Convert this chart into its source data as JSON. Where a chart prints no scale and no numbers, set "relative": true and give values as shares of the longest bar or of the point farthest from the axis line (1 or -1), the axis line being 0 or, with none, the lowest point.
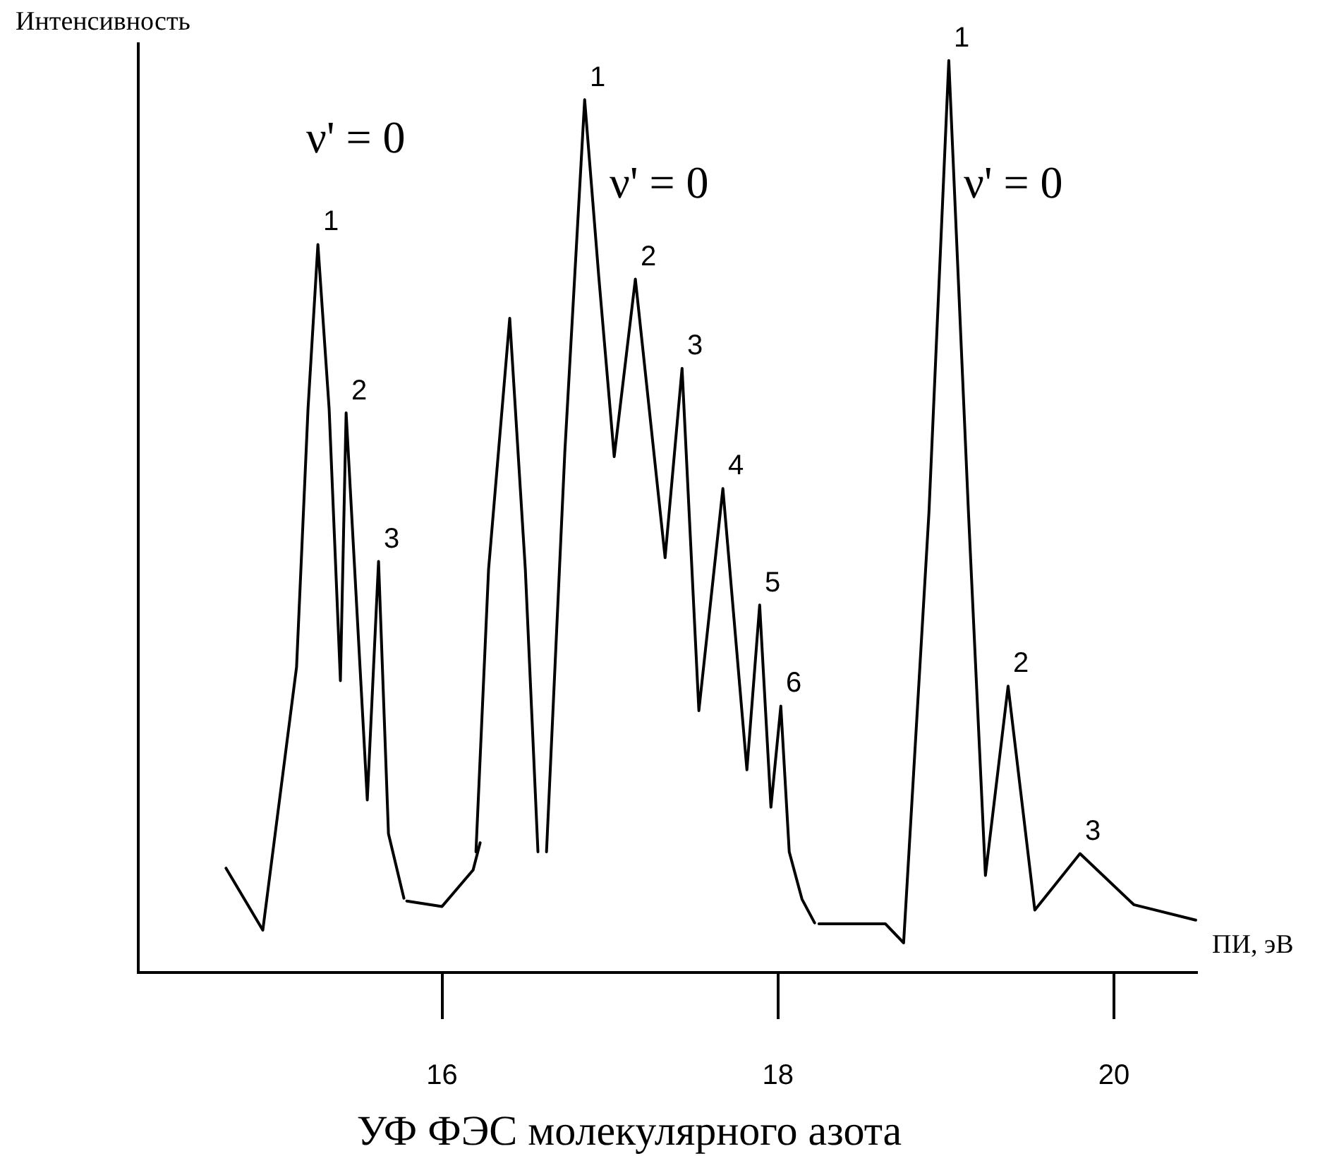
{
  "chart_data": {
    "type": "line",
    "title": "УФ ФЭС молекулярного азота",
    "xlabel": "ПИ, эВ",
    "ylabel": "Интенсивность",
    "relative": true,
    "xlim": [
      14.2,
      20.5
    ],
    "xticks": [
      16,
      18,
      20
    ],
    "x": [
      14.714,
      14.933,
      15.134,
      15.202,
      15.261,
      15.328,
      15.395,
      15.429,
      15.555,
      15.622,
      15.681,
      15.773,
      null,
      15.79,
      16.0,
      16.185,
      16.227,
      null,
      16.202,
      16.277,
      16.403,
      16.496,
      16.571,
      null,
      16.622,
      16.731,
      16.849,
      16.933,
      17.025,
      17.151,
      17.328,
      17.429,
      17.529,
      17.672,
      17.815,
      17.891,
      17.958,
      18.017,
      18.067,
      18.143,
      18.218,
      null,
      18.244,
      18.639,
      18.748,
      18.899,
      19.017,
      19.134,
      19.235,
      19.37,
      19.529,
      19.798,
      20.118,
      20.487
    ],
    "series": [
      {
        "color": "#000000",
        "values": [
          0.113,
          0.045,
          0.334,
          0.617,
          0.798,
          0.617,
          0.319,
          0.613,
          0.188,
          0.45,
          0.151,
          0.08,
          null,
          0.077,
          0.071,
          0.111,
          0.141,
          null,
          0.131,
          0.441,
          0.717,
          0.441,
          0.131,
          null,
          0.131,
          0.57,
          0.957,
          0.763,
          0.565,
          0.76,
          0.454,
          0.662,
          0.286,
          0.53,
          0.221,
          0.402,
          0.18,
          0.291,
          0.131,
          0.079,
          0.053,
          null,
          0.052,
          0.052,
          0.031,
          0.504,
          1.0,
          0.504,
          0.105,
          0.313,
          0.067,
          0.129,
          0.073,
          0.056
        ]
      }
    ],
    "annotations": [
      "ν' = 0",
      {
        "text": "1",
        "x": 15.261,
        "y": 0.798
      },
      {
        "text": "2",
        "x": 15.429,
        "y": 0.613
      },
      {
        "text": "3",
        "x": 15.622,
        "y": 0.45
      },
      {
        "text": "1",
        "x": 16.849,
        "y": 0.957
      },
      "ν' = 0",
      {
        "text": "2",
        "x": 17.151,
        "y": 0.76
      },
      {
        "text": "3",
        "x": 17.429,
        "y": 0.662
      },
      {
        "text": "4",
        "x": 17.672,
        "y": 0.53
      },
      {
        "text": "5",
        "x": 17.891,
        "y": 0.402
      },
      {
        "text": "6",
        "x": 18.017,
        "y": 0.291
      },
      {
        "text": "1",
        "x": 19.017,
        "y": 1.0
      },
      "ν' = 0",
      {
        "text": "2",
        "x": 19.37,
        "y": 0.313
      },
      {
        "text": "3",
        "x": 19.798,
        "y": 0.129
      }
    ]
  }
}
